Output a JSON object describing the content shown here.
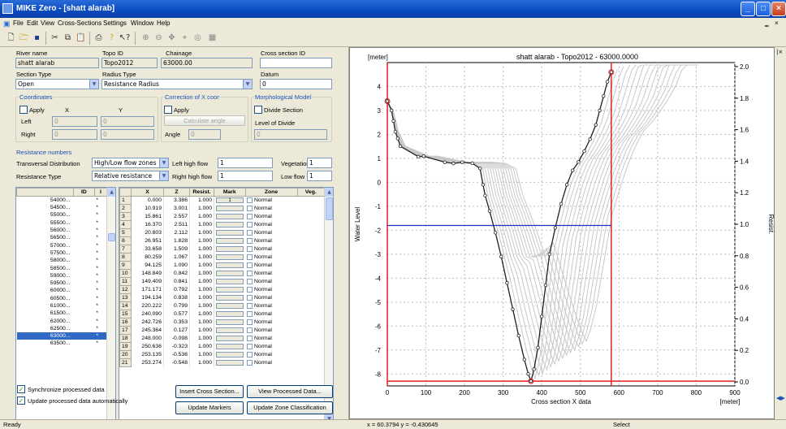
{
  "window": {
    "title": "MIKE Zero - [shatt alarab]"
  },
  "menu": [
    "File",
    "Edit",
    "View",
    "Cross-Sections",
    "Settings",
    "Window",
    "Help"
  ],
  "form": {
    "river_name_label": "River name",
    "river_name": "shatt alarab",
    "topo_id_label": "Topo ID",
    "topo_id": "Topo2012",
    "chainage_label": "Chainage",
    "chainage": "63000.00",
    "cross_section_id_label": "Cross section ID",
    "cross_section_id": "",
    "section_type_label": "Section Type",
    "section_type": "Open",
    "radius_type_label": "Radius Type",
    "radius_type": "Resistance Radius",
    "datum_label": "Datum",
    "datum": "0",
    "coordinates_label": "Coordinates",
    "apply_label": "Apply",
    "x_label": "X",
    "y_label": "Y",
    "left_label": "Left",
    "left_x": "0",
    "left_y": "0",
    "right_label": "Right",
    "right_x": "0",
    "right_y": "0",
    "correction_label": "Correction of X coor",
    "calc_angle_label": "Calculate angle",
    "angle_label": "Angle",
    "angle": "0",
    "morph_label": "Morphological Model",
    "divide_label": "Divide Section",
    "level_divide_label": "Level of Divide",
    "level_divide": "0",
    "resistance_numbers_label": "Resistance numbers",
    "transversal_label": "Transversal Distribution",
    "transversal": "High/Low flow zones",
    "left_high_flow_label": "Left high flow",
    "left_high_flow": "1",
    "vegetation_label": "Vegetation",
    "vegetation": "1",
    "resistance_type_label": "Resistance Type",
    "resistance_type": "Relative resistance",
    "right_high_flow_label": "Right high flow",
    "right_high_flow": "1",
    "low_flow_label": "Low flow",
    "low_flow": "1"
  },
  "chainage_list": {
    "headers": [
      "ID",
      "I"
    ],
    "items": [
      "54000...",
      "54500...",
      "55000...",
      "55500...",
      "56000...",
      "56500...",
      "57000...",
      "57500...",
      "58000...",
      "58500...",
      "59000...",
      "59500...",
      "60000...",
      "60500...",
      "61000...",
      "61500...",
      "62000...",
      "62500...",
      "63000...",
      "63500..."
    ],
    "marks": [
      "*",
      "*",
      "*",
      "*",
      "*",
      "*",
      "*",
      "*",
      "*",
      "*",
      "*",
      "*",
      "*",
      "*",
      "*",
      "*",
      "*",
      "*",
      "*",
      "*"
    ],
    "selected_index": 18
  },
  "point_table": {
    "headers": [
      "",
      "X",
      "Z",
      "Resist.",
      "Mark",
      "Zone",
      "Veg."
    ],
    "rows": [
      [
        "1",
        "0.000",
        "3.386",
        "1.000",
        "1",
        "Normal"
      ],
      [
        "2",
        "10.919",
        "3.001",
        "1.000",
        "",
        "Normal"
      ],
      [
        "3",
        "15.861",
        "2.557",
        "1.000",
        "",
        "Normal"
      ],
      [
        "4",
        "16.370",
        "2.511",
        "1.000",
        "",
        "Normal"
      ],
      [
        "5",
        "20.803",
        "2.112",
        "1.000",
        "",
        "Normal"
      ],
      [
        "6",
        "26.951",
        "1.828",
        "1.000",
        "",
        "Normal"
      ],
      [
        "7",
        "33.658",
        "1.509",
        "1.000",
        "",
        "Normal"
      ],
      [
        "8",
        "80.259",
        "1.067",
        "1.000",
        "",
        "Normal"
      ],
      [
        "9",
        "94.125",
        "1.090",
        "1.000",
        "",
        "Normal"
      ],
      [
        "10",
        "148.849",
        "0.842",
        "1.000",
        "",
        "Normal"
      ],
      [
        "11",
        "149.409",
        "0.841",
        "1.000",
        "",
        "Normal"
      ],
      [
        "12",
        "171.171",
        "0.792",
        "1.000",
        "",
        "Normal"
      ],
      [
        "13",
        "194.134",
        "0.838",
        "1.000",
        "",
        "Normal"
      ],
      [
        "14",
        "220.222",
        "0.799",
        "1.000",
        "",
        "Normal"
      ],
      [
        "15",
        "240.090",
        "0.577",
        "1.000",
        "",
        "Normal"
      ],
      [
        "16",
        "242.726",
        "0.353",
        "1.000",
        "",
        "Normal"
      ],
      [
        "17",
        "245.364",
        "0.127",
        "1.000",
        "",
        "Normal"
      ],
      [
        "18",
        "248.000",
        "-0.098",
        "1.000",
        "",
        "Normal"
      ],
      [
        "19",
        "250.636",
        "-0.323",
        "1.000",
        "",
        "Normal"
      ],
      [
        "20",
        "253.135",
        "-0.536",
        "1.000",
        "",
        "Normal"
      ],
      [
        "21",
        "253.274",
        "-0.548",
        "1.000",
        "",
        "Normal"
      ]
    ]
  },
  "bottom": {
    "sync_label": "Synchronize processed data",
    "update_label": "Update processed data automatically",
    "insert_btn": "Insert Cross Section...",
    "view_btn": "View Processed Data...",
    "markers_btn": "Update Markers",
    "zone_btn": "Update Zone Classification"
  },
  "chart_data": {
    "type": "line",
    "title": "shatt alarab - Topo2012 - 63000.0000",
    "xlabel": "Cross section X data",
    "ylabel": "Water Level",
    "y2label": "Resist.",
    "x_unit": "[meter]",
    "y_unit": "[meter]",
    "xlim": [
      0,
      900
    ],
    "ylim": [
      -8.5,
      5
    ],
    "y2lim": [
      0,
      2
    ],
    "x_ticks": [
      0,
      100,
      200,
      300,
      400,
      500,
      600,
      700,
      800,
      900
    ],
    "y_ticks": [
      4,
      3,
      2,
      1,
      0,
      -1,
      -2,
      -3,
      -4,
      -5,
      -6,
      -7,
      -8
    ],
    "y2_ticks": [
      "0.0",
      "0.2",
      "0.4",
      "0.6",
      "0.8",
      "1.0",
      "1.2",
      "1.4",
      "1.6",
      "1.8",
      "2.0"
    ],
    "series": [
      {
        "name": "",
        "x": [
          0,
          10.9,
          15.9,
          20.8,
          27,
          33.7,
          80.3,
          94.1,
          148.8,
          171.2,
          194.1,
          220.2,
          240.1,
          248,
          253.3,
          265,
          280,
          295,
          310,
          325,
          340,
          355,
          365,
          372,
          380,
          390,
          400,
          410,
          420,
          435,
          450,
          465,
          480,
          495,
          510,
          525,
          540,
          550,
          560,
          570,
          580
        ],
        "y": [
          3.39,
          3.0,
          2.56,
          2.11,
          1.83,
          1.51,
          1.07,
          1.09,
          0.84,
          0.79,
          0.84,
          0.8,
          0.58,
          -0.1,
          -0.55,
          -1.2,
          -2.1,
          -3.1,
          -4.2,
          -5.3,
          -6.4,
          -7.4,
          -8.0,
          -8.3,
          -7.8,
          -6.9,
          -5.6,
          -4.3,
          -3.0,
          -1.9,
          -0.9,
          -0.1,
          0.5,
          0.85,
          1.3,
          1.8,
          2.4,
          3.0,
          3.6,
          4.2,
          4.6
        ]
      },
      {
        "name": "",
        "x": [
          0,
          900
        ],
        "y": [
          -1.8,
          -1.8
        ]
      }
    ],
    "markers": {
      "left_bank_x": 0,
      "right_bank_x": 580,
      "bottom_y": -8.3
    }
  },
  "status": {
    "left": "Ready",
    "coords": "x = 60.3794  y = -0.430645",
    "mode": "Select"
  }
}
